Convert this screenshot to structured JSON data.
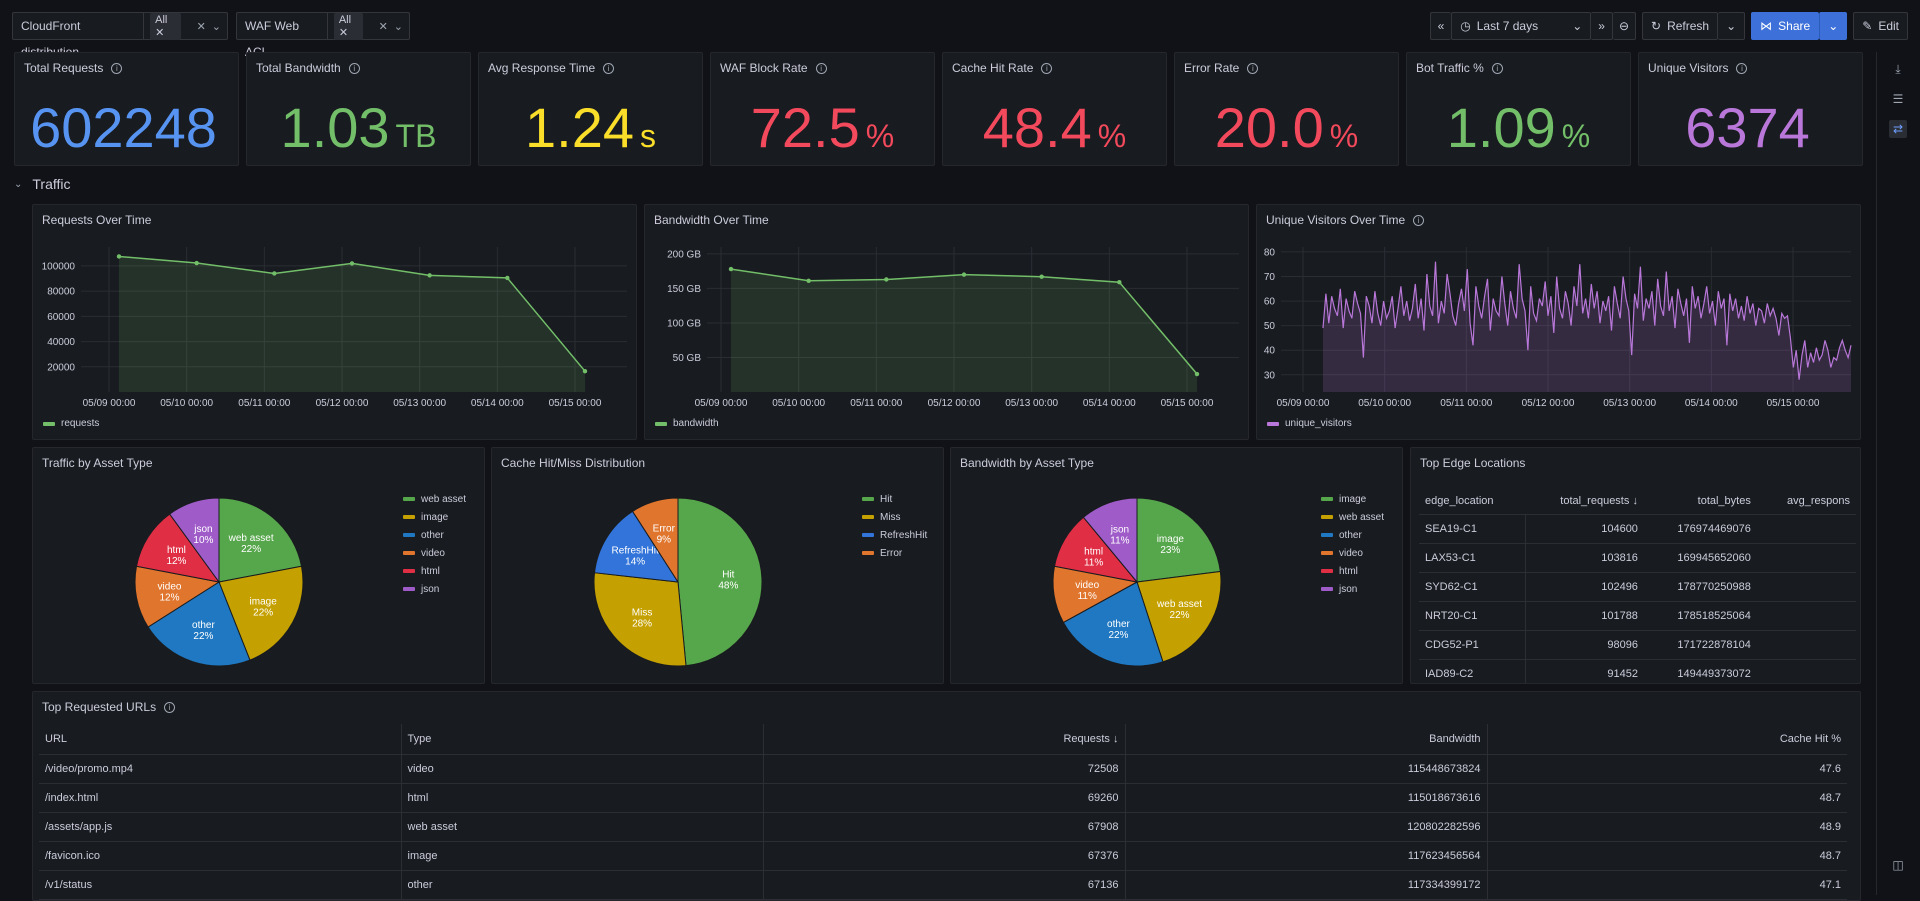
{
  "variables": [
    {
      "label": "CloudFront distribution",
      "value": "All"
    },
    {
      "label": "WAF Web ACL",
      "value": "All"
    }
  ],
  "toolbar": {
    "time_range": "Last 7 days",
    "refresh": "Refresh",
    "share": "Share",
    "edit": "Edit"
  },
  "stats": [
    {
      "title": "Total Requests",
      "value": "602248",
      "unit": "",
      "color": "#5794f2"
    },
    {
      "title": "Total Bandwidth",
      "value": "1.03",
      "unit": "TB",
      "color": "#73bf69"
    },
    {
      "title": "Avg Response Time",
      "value": "1.24",
      "unit": "s",
      "color": "#fade2a"
    },
    {
      "title": "WAF Block Rate",
      "value": "72.5",
      "unit": "%",
      "color": "#f2495c"
    },
    {
      "title": "Cache Hit Rate",
      "value": "48.4",
      "unit": "%",
      "color": "#f2495c"
    },
    {
      "title": "Error Rate",
      "value": "20.0",
      "unit": "%",
      "color": "#f2495c"
    },
    {
      "title": "Bot Traffic %",
      "value": "1.09",
      "unit": "%",
      "color": "#73bf69"
    },
    {
      "title": "Unique Visitors",
      "value": "6374",
      "unit": "",
      "color": "#b877d9"
    }
  ],
  "row_title": "Traffic",
  "chart_data": [
    {
      "type": "line",
      "title": "Requests Over Time",
      "x": [
        "05/09 00:00",
        "05/10 00:00",
        "05/11 00:00",
        "05/12 00:00",
        "05/13 00:00",
        "05/14 00:00",
        "05/15 00:00"
      ],
      "x_ticks": [
        "05/09 00:00",
        "05/10 00:00",
        "05/11 00:00",
        "05/12 00:00",
        "05/13 00:00",
        "05/14 00:00",
        "05/15 00:00"
      ],
      "y_ticks": [
        "20000",
        "40000",
        "60000",
        "80000",
        "100000"
      ],
      "ylim": [
        0,
        115000
      ],
      "series": [
        {
          "name": "requests",
          "values": [
            107500,
            102300,
            94000,
            102000,
            92500,
            90500,
            16500
          ]
        }
      ]
    },
    {
      "type": "line",
      "title": "Bandwidth Over Time",
      "x": [
        "05/09 00:00",
        "05/10 00:00",
        "05/11 00:00",
        "05/12 00:00",
        "05/13 00:00",
        "05/14 00:00",
        "05/15 00:00"
      ],
      "x_ticks": [
        "05/09 00:00",
        "05/10 00:00",
        "05/11 00:00",
        "05/12 00:00",
        "05/13 00:00",
        "05/14 00:00",
        "05/15 00:00"
      ],
      "y_ticks": [
        "50 GB",
        "100 GB",
        "150 GB",
        "200 GB"
      ],
      "ylim": [
        0,
        210
      ],
      "unit": "GB",
      "series": [
        {
          "name": "bandwidth",
          "values": [
            178,
            161,
            163,
            170,
            167,
            159,
            26
          ]
        }
      ]
    },
    {
      "type": "line",
      "title": "Unique Visitors Over Time",
      "x_ticks": [
        "05/09 00:00",
        "05/10 00:00",
        "05/11 00:00",
        "05/12 00:00",
        "05/13 00:00",
        "05/14 00:00",
        "05/15 00:00"
      ],
      "y_ticks": [
        "30",
        "40",
        "50",
        "60",
        "70",
        "80"
      ],
      "ylim": [
        23,
        82
      ],
      "series": [
        {
          "name": "unique_visitors",
          "values": [
            49,
            63,
            51,
            62,
            57,
            54,
            65,
            49,
            61,
            56,
            53,
            64,
            59,
            55,
            37,
            62,
            58,
            51,
            64,
            55,
            50,
            60,
            53,
            56,
            62,
            49,
            57,
            66,
            54,
            60,
            52,
            57,
            67,
            53,
            61,
            48,
            71,
            58,
            54,
            76,
            51,
            60,
            55,
            71,
            63,
            54,
            50,
            59,
            65,
            56,
            73,
            51,
            42,
            66,
            58,
            53,
            62,
            69,
            48,
            61,
            56,
            54,
            70,
            59,
            50,
            64,
            57,
            53,
            75,
            61,
            56,
            40,
            66,
            55,
            52,
            61,
            58,
            68,
            54,
            62,
            47,
            70,
            57,
            53,
            64,
            59,
            50,
            66,
            58,
            75,
            55,
            61,
            53,
            67,
            57,
            64,
            51,
            60,
            56,
            62,
            48,
            66,
            59,
            53,
            70,
            61,
            56,
            38,
            63,
            57,
            74,
            52,
            61,
            57,
            64,
            50,
            69,
            58,
            54,
            72,
            56,
            62,
            49,
            65,
            59,
            54,
            61,
            43,
            66,
            57,
            62,
            53,
            59,
            66,
            55,
            60,
            50,
            64,
            57,
            61,
            42,
            63,
            56,
            61,
            53,
            58,
            52,
            62,
            55,
            59,
            50,
            57,
            56,
            51,
            59,
            54,
            57,
            53,
            46,
            55,
            53,
            54,
            45,
            33,
            40,
            28,
            38,
            44,
            33,
            39,
            35,
            41,
            36,
            38,
            44,
            40,
            33,
            37,
            36,
            41,
            44,
            40,
            37,
            42
          ]
        }
      ]
    },
    {
      "type": "pie",
      "title": "Traffic by Asset Type",
      "categories": [
        "web asset",
        "image",
        "other",
        "video",
        "html",
        "json"
      ],
      "values": [
        22,
        22,
        22,
        12,
        12,
        10
      ],
      "colors": [
        "#56a64b",
        "#c4a000",
        "#1f78c1",
        "#e0752d",
        "#e02f44",
        "#9f5cc9"
      ]
    },
    {
      "type": "pie",
      "title": "Cache Hit/Miss Distribution",
      "categories": [
        "Hit",
        "Miss",
        "RefreshHit",
        "Error"
      ],
      "values": [
        48,
        28,
        14,
        9
      ],
      "colors": [
        "#56a64b",
        "#c4a000",
        "#3274d9",
        "#e0752d"
      ]
    },
    {
      "type": "pie",
      "title": "Bandwidth by Asset Type",
      "categories": [
        "image",
        "web asset",
        "other",
        "video",
        "html",
        "json"
      ],
      "values": [
        23,
        22,
        22,
        11,
        11,
        11
      ],
      "colors": [
        "#56a64b",
        "#c4a000",
        "#1f78c1",
        "#e0752d",
        "#e02f44",
        "#9f5cc9"
      ]
    }
  ],
  "edge_table": {
    "title": "Top Edge Locations",
    "columns": [
      "edge_location",
      "total_requests",
      "total_bytes",
      "avg_respons"
    ],
    "rows": [
      [
        "SEA19-C1",
        "104600",
        "176974469076",
        ""
      ],
      [
        "LAX53-C1",
        "103816",
        "169945652060",
        ""
      ],
      [
        "SYD62-C1",
        "102496",
        "178770250988",
        ""
      ],
      [
        "NRT20-C1",
        "101788",
        "178518525064",
        ""
      ],
      [
        "CDG52-P1",
        "98096",
        "171722878104",
        ""
      ],
      [
        "IAD89-C2",
        "91452",
        "149449373072",
        ""
      ]
    ]
  },
  "url_table": {
    "title": "Top Requested URLs",
    "columns": [
      "URL",
      "Type",
      "Requests",
      "Bandwidth",
      "Cache Hit %"
    ],
    "rows": [
      [
        "/video/promo.mp4",
        "video",
        "72508",
        "115448673824",
        "47.6"
      ],
      [
        "/index.html",
        "html",
        "69260",
        "115018673616",
        "48.7"
      ],
      [
        "/assets/app.js",
        "web asset",
        "67908",
        "120802282596",
        "48.9"
      ],
      [
        "/favicon.ico",
        "image",
        "67376",
        "117623456564",
        "48.7"
      ],
      [
        "/v1/status",
        "other",
        "67136",
        "117334399172",
        "47.1"
      ]
    ]
  }
}
